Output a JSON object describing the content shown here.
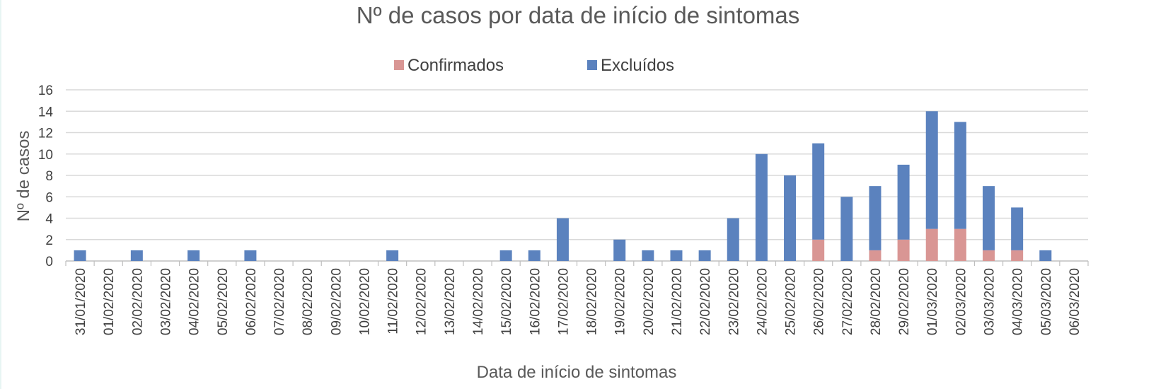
{
  "chart_data": {
    "type": "bar",
    "stacked": true,
    "title": "Nº de casos por data de início de sintomas",
    "xlabel": "Data de início de sintomas",
    "ylabel": "Nº de casos",
    "ylim": [
      0,
      16
    ],
    "yticks": [
      0,
      2,
      4,
      6,
      8,
      10,
      12,
      14,
      16
    ],
    "grid": "horizontal",
    "legend_position": "top",
    "categories": [
      "31/01/2020",
      "01/02/2020",
      "02/02/2020",
      "03/02/2020",
      "04/02/2020",
      "05/02/2020",
      "06/02/2020",
      "07/02/2020",
      "08/02/2020",
      "09/02/2020",
      "10/02/2020",
      "11/02/2020",
      "12/02/2020",
      "13/02/2020",
      "14/02/2020",
      "15/02/2020",
      "16/02/2020",
      "17/02/2020",
      "18/02/2020",
      "19/02/2020",
      "20/02/2020",
      "21/02/2020",
      "22/02/2020",
      "23/02/2020",
      "24/02/2020",
      "25/02/2020",
      "26/02/2020",
      "27/02/2020",
      "28/02/2020",
      "29/02/2020",
      "01/03/2020",
      "02/03/2020",
      "03/03/2020",
      "04/03/2020",
      "05/03/2020",
      "06/03/2020"
    ],
    "series": [
      {
        "name": "Confirmados",
        "color": "#d99694",
        "values": [
          0,
          0,
          0,
          0,
          0,
          0,
          0,
          0,
          0,
          0,
          0,
          0,
          0,
          0,
          0,
          0,
          0,
          0,
          0,
          0,
          0,
          0,
          0,
          0,
          0,
          0,
          2,
          0,
          1,
          2,
          3,
          3,
          1,
          1,
          0,
          0
        ]
      },
      {
        "name": "Excluídos",
        "color": "#5b82be",
        "values": [
          1,
          0,
          1,
          0,
          1,
          0,
          1,
          0,
          0,
          0,
          0,
          1,
          0,
          0,
          0,
          1,
          1,
          4,
          0,
          2,
          1,
          1,
          1,
          4,
          10,
          8,
          9,
          6,
          6,
          7,
          11,
          10,
          6,
          4,
          1,
          0
        ]
      }
    ]
  }
}
